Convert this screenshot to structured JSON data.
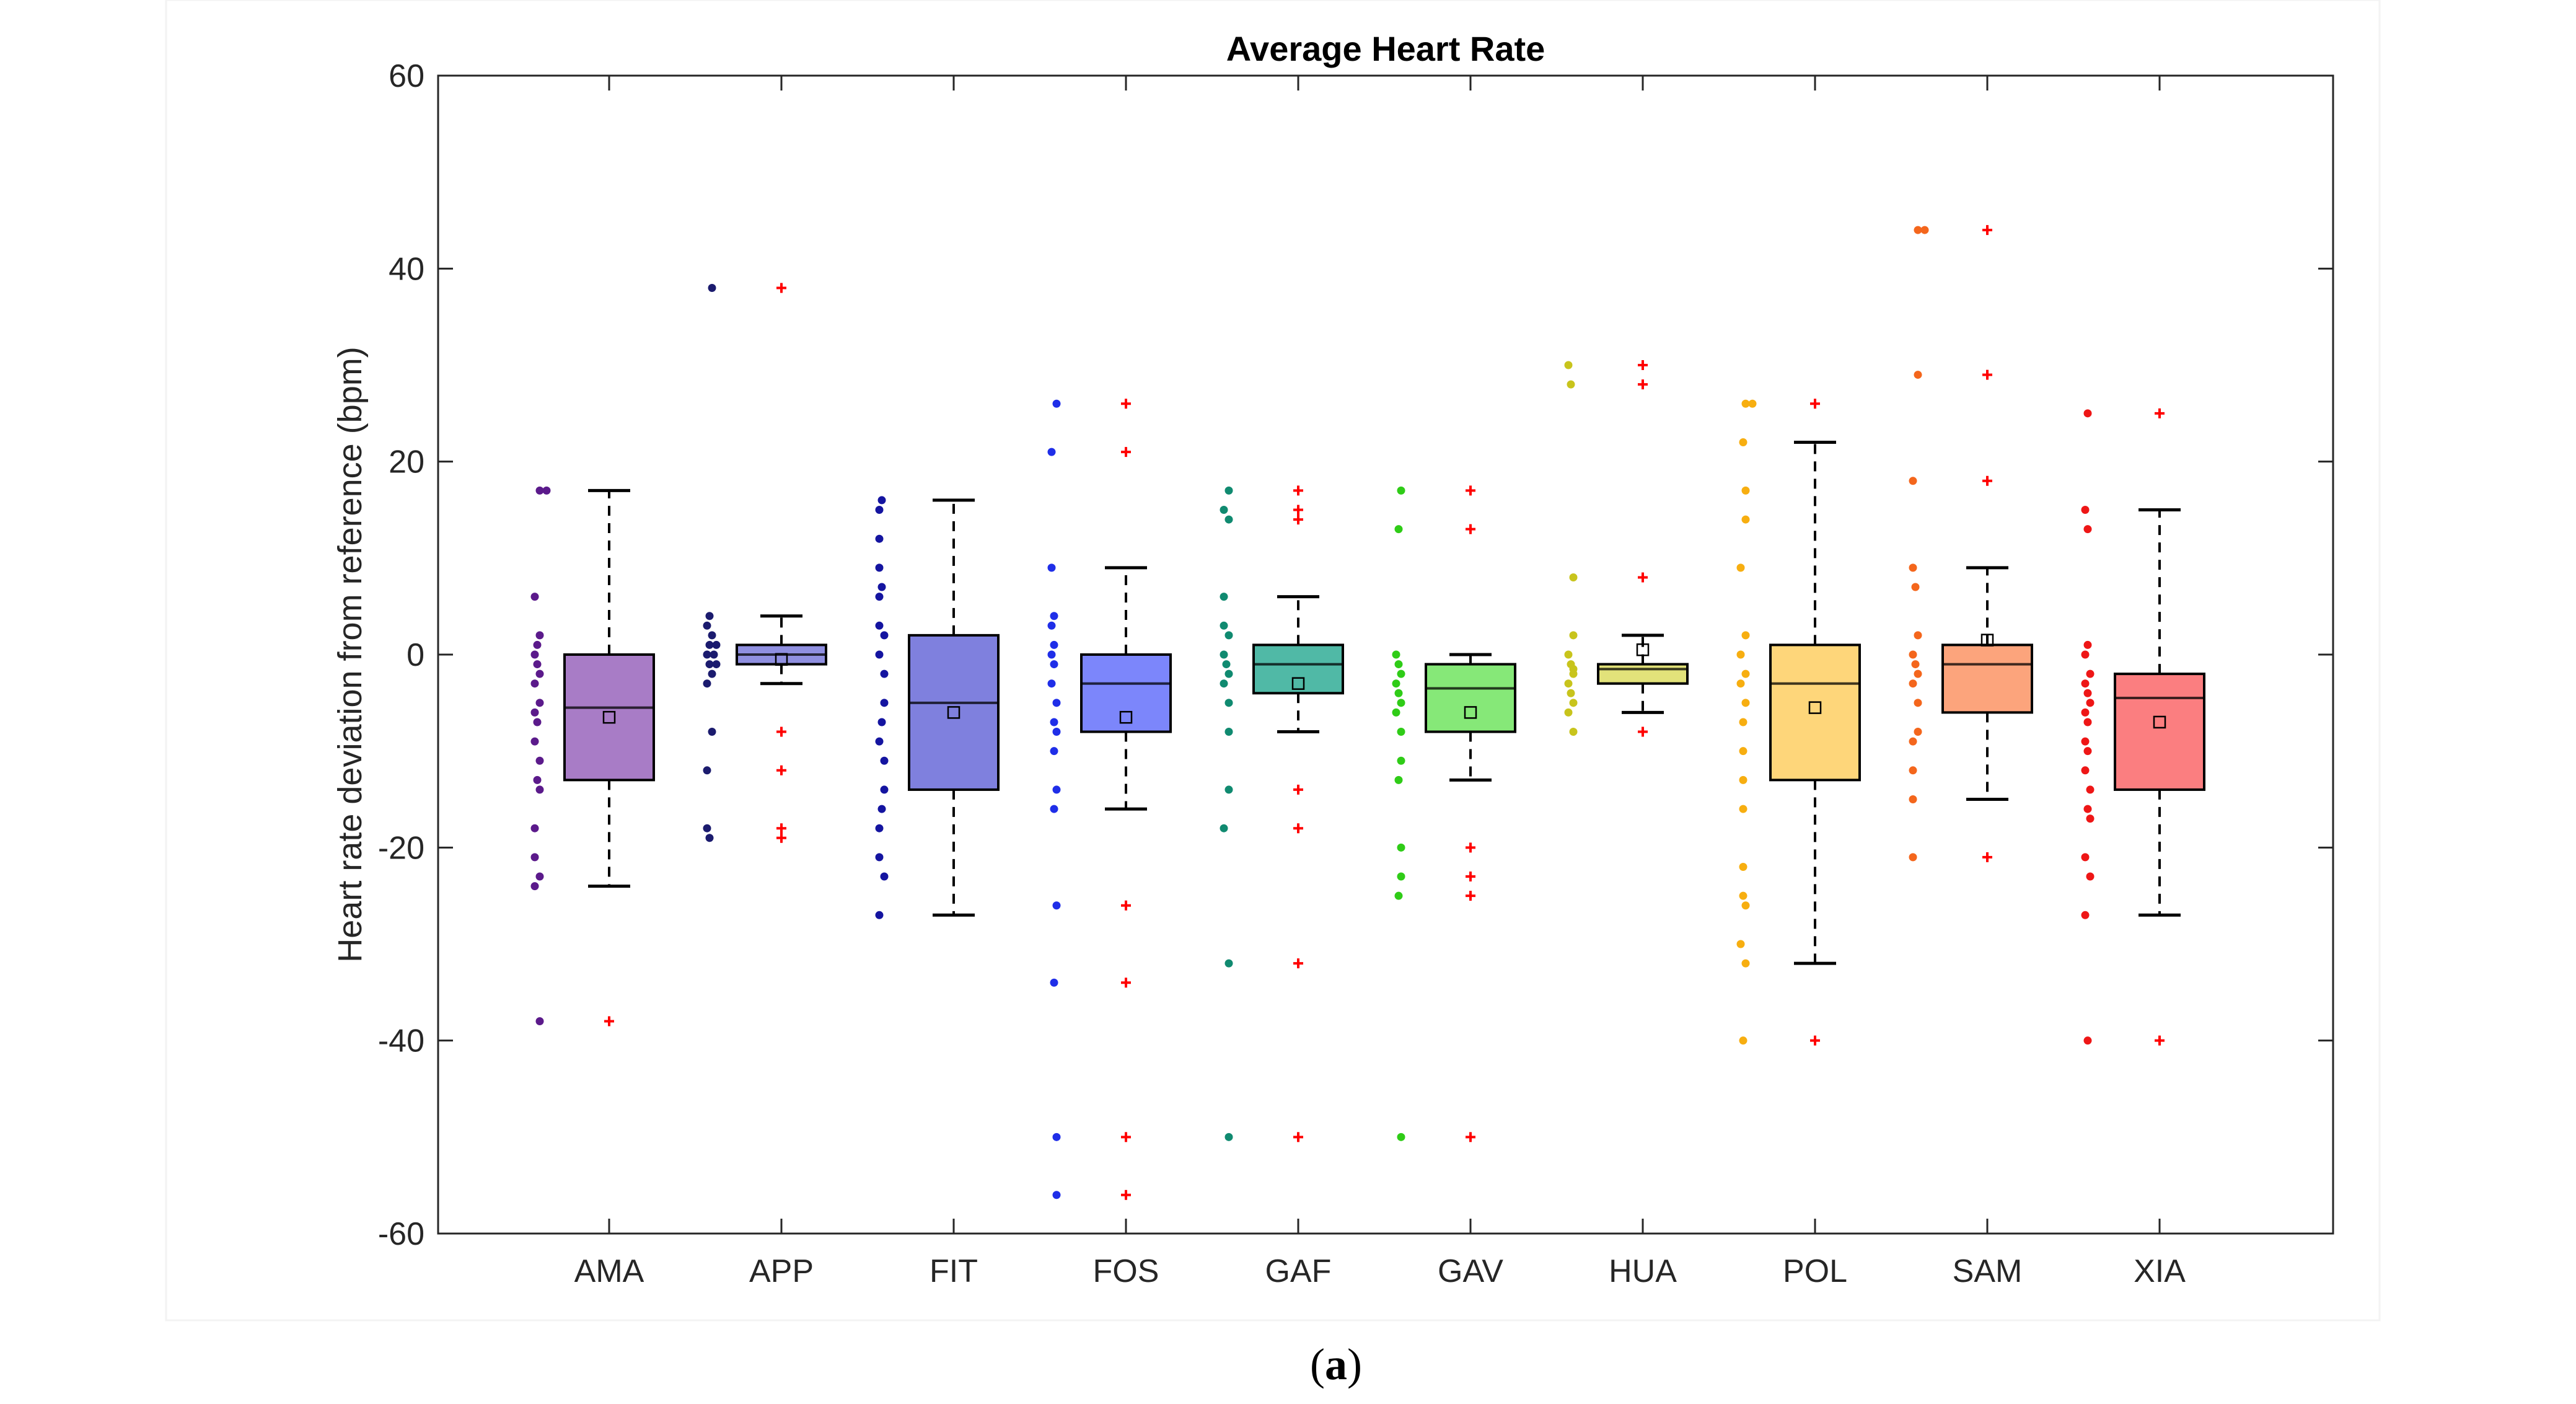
{
  "chart_data": {
    "type": "box",
    "title": "Average Heart Rate",
    "xlabel": "",
    "ylabel": "Heart rate deviation from reference (bpm)",
    "ylim": [
      -60,
      60
    ],
    "yticks": [
      60,
      40,
      20,
      0,
      -20,
      -40,
      -60
    ],
    "ytick_labels": [
      "60",
      "40",
      "20",
      "0",
      "-20",
      "-40",
      "-60"
    ],
    "grid": false,
    "caption": {
      "open": "(",
      "letter": "a",
      "close": ")"
    },
    "colors": {
      "outlier": "#ff0000",
      "whisker": "#000000",
      "axis": "#262626"
    },
    "categories": [
      "AMA",
      "APP",
      "FIT",
      "FOS",
      "GAF",
      "GAV",
      "HUA",
      "POL",
      "SAM",
      "XIA"
    ],
    "series": [
      {
        "name": "AMA",
        "box_color": "#a87cc6",
        "point_color": "#5b1a8b",
        "whisker_low": -24,
        "q1": -13,
        "median": -5.5,
        "q3": 0,
        "whisker_high": 17,
        "mean": -6.5,
        "outliers": [
          -38
        ],
        "points": [
          17,
          17,
          6,
          2,
          1,
          0,
          -1,
          -2,
          -3,
          -5,
          -6,
          -7,
          -9,
          -11,
          -13,
          -14,
          -18,
          -21,
          -23,
          -24,
          -38
        ]
      },
      {
        "name": "APP",
        "box_color": "#8f8fe0",
        "point_color": "#1b1b6e",
        "whisker_low": -3,
        "q1": -1,
        "median": 0,
        "q3": 1,
        "whisker_high": 4,
        "mean": -0.5,
        "outliers": [
          38,
          -8,
          -12,
          -18,
          -19
        ],
        "points": [
          38,
          4,
          3,
          2,
          1,
          1,
          0,
          0,
          -1,
          -1,
          -2,
          -3,
          -8,
          -12,
          -18,
          -19
        ]
      },
      {
        "name": "FIT",
        "box_color": "#7f80de",
        "point_color": "#1414a0",
        "whisker_low": -27,
        "q1": -14,
        "median": -5,
        "q3": 2,
        "whisker_high": 16,
        "mean": -6,
        "outliers": [],
        "points": [
          16,
          15,
          12,
          9,
          7,
          6,
          3,
          2,
          0,
          -2,
          -5,
          -7,
          -9,
          -11,
          -14,
          -16,
          -18,
          -21,
          -23,
          -27
        ]
      },
      {
        "name": "FOS",
        "box_color": "#7c86fb",
        "point_color": "#1f2ee8",
        "whisker_low": -16,
        "q1": -8,
        "median": -3,
        "q3": 0,
        "whisker_high": 9,
        "mean": -6.5,
        "outliers": [
          26,
          21,
          -26,
          -34,
          -50,
          -56
        ],
        "points": [
          26,
          21,
          9,
          4,
          3,
          1,
          0,
          -1,
          -3,
          -5,
          -7,
          -8,
          -10,
          -14,
          -16,
          -26,
          -34,
          -50,
          -56
        ]
      },
      {
        "name": "GAF",
        "box_color": "#50b9a6",
        "point_color": "#108a70",
        "whisker_low": -8,
        "q1": -4,
        "median": -1,
        "q3": 1,
        "whisker_high": 6,
        "mean": -3,
        "outliers": [
          17,
          15,
          14,
          -14,
          -18,
          -32,
          -50
        ],
        "points": [
          17,
          15,
          14,
          6,
          3,
          2,
          0,
          -1,
          -2,
          -3,
          -5,
          -8,
          -14,
          -18,
          -32,
          -50
        ]
      },
      {
        "name": "GAV",
        "box_color": "#86e878",
        "point_color": "#2fcc17",
        "whisker_low": -13,
        "q1": -8,
        "median": -3.5,
        "q3": -1,
        "whisker_high": 0,
        "mean": -6,
        "outliers": [
          17,
          13,
          -20,
          -23,
          -25,
          -50
        ],
        "points": [
          17,
          13,
          0,
          -1,
          -2,
          -3,
          -4,
          -5,
          -6,
          -8,
          -11,
          -13,
          -20,
          -23,
          -25,
          -50
        ]
      },
      {
        "name": "HUA",
        "box_color": "#e2e27a",
        "point_color": "#c8c41c",
        "whisker_low": -6,
        "q1": -3,
        "median": -1.5,
        "q3": -1,
        "whisker_high": 2,
        "mean": 0.5,
        "outliers": [
          30,
          28,
          8,
          -8
        ],
        "points": [
          30,
          28,
          8,
          2,
          0,
          -1,
          -1.5,
          -2,
          -3,
          -4,
          -5,
          -6,
          -8
        ]
      },
      {
        "name": "POL",
        "box_color": "#fed67a",
        "point_color": "#f7ae10",
        "whisker_low": -32,
        "q1": -13,
        "median": -3,
        "q3": 1,
        "whisker_high": 22,
        "mean": -5.5,
        "outliers": [
          26,
          -40
        ],
        "points": [
          26,
          26,
          22,
          17,
          14,
          9,
          2,
          0,
          -2,
          -3,
          -5,
          -7,
          -10,
          -13,
          -16,
          -22,
          -25,
          -26,
          -30,
          -32,
          -40
        ]
      },
      {
        "name": "SAM",
        "box_color": "#fca47c",
        "point_color": "#f4661c",
        "whisker_low": -15,
        "q1": -6,
        "median": -1,
        "q3": 1,
        "whisker_high": 9,
        "mean": 1.5,
        "outliers": [
          44,
          29,
          18,
          -21
        ],
        "points": [
          44,
          44,
          29,
          18,
          9,
          7,
          2,
          0,
          -1,
          -2,
          -3,
          -5,
          -8,
          -9,
          -12,
          -15,
          -21
        ]
      },
      {
        "name": "XIA",
        "box_color": "#fb7e80",
        "point_color": "#ee1616",
        "whisker_low": -27,
        "q1": -14,
        "median": -4.5,
        "q3": -2,
        "whisker_high": 15,
        "mean": -7,
        "outliers": [
          25,
          -40
        ],
        "points": [
          25,
          15,
          13,
          1,
          0,
          -2,
          -3,
          -4,
          -5,
          -6,
          -7,
          -9,
          -10,
          -12,
          -14,
          -16,
          -17,
          -21,
          -23,
          -27,
          -40
        ]
      }
    ]
  }
}
